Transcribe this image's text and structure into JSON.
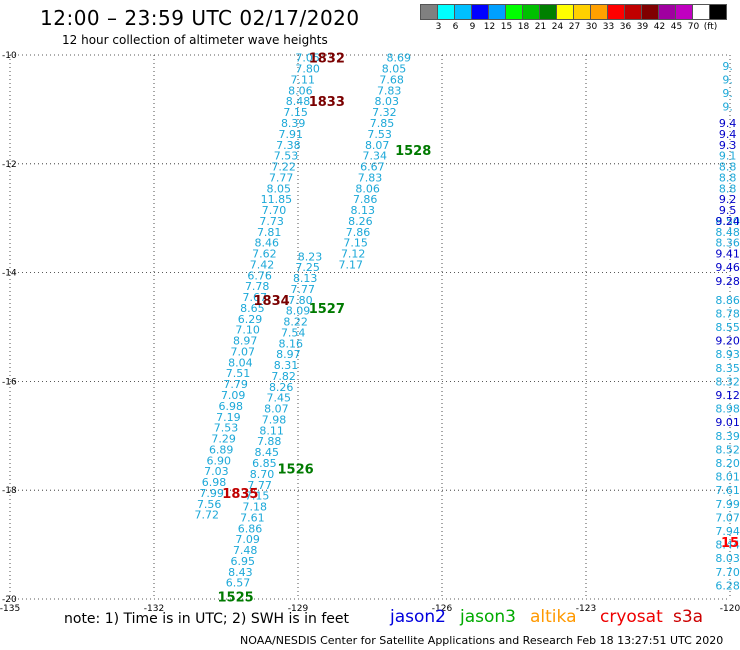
{
  "header": {
    "title": "12:00 – 23:59 UTC 02/17/2020",
    "subtitle": "12 hour collection of altimeter wave heights"
  },
  "scale": {
    "colors": [
      "#808080",
      "#00ffff",
      "#00c0ff",
      "#0000ff",
      "#00a0ff",
      "#00ff00",
      "#00c000",
      "#008000",
      "#ffff00",
      "#ffd000",
      "#ffa000",
      "#ff0000",
      "#c00000",
      "#800000",
      "#a000a0",
      "#c000c0",
      "#ffffff",
      "#000000"
    ],
    "labels": [
      "3",
      "6",
      "9",
      "12",
      "15",
      "18",
      "21",
      "24",
      "27",
      "30",
      "33",
      "36",
      "39",
      "42",
      "45",
      "70",
      "(ft)"
    ]
  },
  "axes": {
    "lat_labels": [
      "-10",
      "-12",
      "-14",
      "-16",
      "-18",
      "-20"
    ],
    "lon_labels": [
      "-135",
      "-132",
      "-129",
      "-126",
      "-123",
      "-120"
    ]
  },
  "chart_data": {
    "type": "scatter",
    "x_axis": "longitude",
    "y_axis": "latitude",
    "xlim": [
      -135,
      -120
    ],
    "ylim": [
      -20,
      -10
    ],
    "tracks": [
      {
        "id": "track1",
        "color": "#1ca8d8",
        "points": [
          [
            -128.8,
            -10.05,
            "7.05"
          ],
          [
            -128.8,
            -10.25,
            "7.80"
          ],
          [
            -128.9,
            -10.45,
            "7.11"
          ],
          [
            -128.95,
            -10.65,
            "8.06"
          ],
          [
            -129.0,
            -10.85,
            "8.48"
          ],
          [
            -129.05,
            -11.05,
            "7.15"
          ],
          [
            -129.1,
            -11.25,
            "8.39"
          ],
          [
            -129.15,
            -11.45,
            "7.91"
          ],
          [
            -129.2,
            -11.65,
            "7.38"
          ],
          [
            -129.25,
            -11.85,
            "7.53"
          ],
          [
            -129.3,
            -12.05,
            "7.22"
          ],
          [
            -129.35,
            -12.25,
            "7.77"
          ],
          [
            -129.4,
            -12.45,
            "8.05"
          ],
          [
            -129.45,
            -12.65,
            "11.85"
          ],
          [
            -129.5,
            -12.85,
            "7.70"
          ],
          [
            -129.55,
            -13.05,
            "7.73"
          ],
          [
            -129.6,
            -13.25,
            "7.81"
          ],
          [
            -129.65,
            -13.45,
            "8.46"
          ],
          [
            -129.7,
            -13.65,
            "7.62"
          ],
          [
            -129.75,
            -13.85,
            "7.42"
          ],
          [
            -129.8,
            -14.05,
            "6.76"
          ],
          [
            -129.85,
            -14.25,
            "7.78"
          ],
          [
            -129.9,
            -14.45,
            "7.67"
          ],
          [
            -129.95,
            -14.65,
            "8.65"
          ],
          [
            -130.0,
            -14.85,
            "6.29"
          ],
          [
            -130.05,
            -15.05,
            "7.10"
          ],
          [
            -130.1,
            -15.25,
            "8.97"
          ],
          [
            -130.15,
            -15.45,
            "7.07"
          ],
          [
            -130.2,
            -15.65,
            "8.04"
          ],
          [
            -130.25,
            -15.85,
            "7.51"
          ],
          [
            -130.3,
            -16.05,
            "7.79"
          ],
          [
            -130.35,
            -16.25,
            "7.09"
          ],
          [
            -130.4,
            -16.45,
            "6.98"
          ],
          [
            -130.45,
            -16.65,
            "7.19"
          ],
          [
            -130.5,
            -16.85,
            "7.53"
          ],
          [
            -130.55,
            -17.05,
            "7.29"
          ],
          [
            -130.6,
            -17.25,
            "6.89"
          ],
          [
            -130.65,
            -17.45,
            "6.90"
          ],
          [
            -130.7,
            -17.65,
            "7.03"
          ],
          [
            -130.75,
            -17.85,
            "6.98"
          ],
          [
            -130.8,
            -18.05,
            "7.99"
          ],
          [
            -130.85,
            -18.25,
            "7.56"
          ],
          [
            -130.9,
            -18.45,
            "7.72"
          ]
        ]
      },
      {
        "id": "track2",
        "color": "#1ca8d8",
        "points": [
          [
            -128.75,
            -13.7,
            "8.23"
          ],
          [
            -128.8,
            -13.9,
            "7.25"
          ],
          [
            -128.85,
            -14.1,
            "8.13"
          ],
          [
            -128.9,
            -14.3,
            "7.77"
          ],
          [
            -128.95,
            -14.5,
            "7.80"
          ],
          [
            -129.0,
            -14.7,
            "8.09"
          ],
          [
            -129.05,
            -14.9,
            "8.22"
          ],
          [
            -129.1,
            -15.1,
            "7.54"
          ],
          [
            -129.15,
            -15.3,
            "8.16"
          ],
          [
            -129.2,
            -15.5,
            "8.97"
          ],
          [
            -129.25,
            -15.7,
            "8.31"
          ],
          [
            -129.3,
            -15.9,
            "7.82"
          ],
          [
            -129.35,
            -16.1,
            "8.26"
          ],
          [
            -129.4,
            -16.3,
            "7.45"
          ],
          [
            -129.45,
            -16.5,
            "8.07"
          ],
          [
            -129.5,
            -16.7,
            "7.98"
          ],
          [
            -129.55,
            -16.9,
            "8.11"
          ],
          [
            -129.6,
            -17.1,
            "7.88"
          ],
          [
            -129.65,
            -17.3,
            "8.45"
          ],
          [
            -129.7,
            -17.5,
            "6.85"
          ],
          [
            -129.75,
            -17.7,
            "8.70"
          ],
          [
            -129.8,
            -17.9,
            "7.77"
          ],
          [
            -129.85,
            -18.1,
            "7.15"
          ],
          [
            -129.9,
            -18.3,
            "7.18"
          ],
          [
            -129.95,
            -18.5,
            "7.61"
          ],
          [
            -130.0,
            -18.7,
            "6.86"
          ],
          [
            -130.05,
            -18.9,
            "7.09"
          ],
          [
            -130.1,
            -19.1,
            "7.48"
          ],
          [
            -130.15,
            -19.3,
            "6.95"
          ],
          [
            -130.2,
            -19.5,
            "8.43"
          ],
          [
            -130.25,
            -19.7,
            "6.57"
          ]
        ]
      },
      {
        "id": "track3",
        "color": "#1ca8d8",
        "points": [
          [
            -126.9,
            -10.05,
            "8.69"
          ],
          [
            -127.0,
            -10.25,
            "8.05"
          ],
          [
            -127.05,
            -10.45,
            "7.68"
          ],
          [
            -127.1,
            -10.65,
            "7.83"
          ],
          [
            -127.15,
            -10.85,
            "8.03"
          ],
          [
            -127.2,
            -11.05,
            "7.32"
          ],
          [
            -127.25,
            -11.25,
            "7.85"
          ],
          [
            -127.3,
            -11.45,
            "7.53"
          ],
          [
            -127.35,
            -11.65,
            "8.07"
          ],
          [
            -127.4,
            -11.85,
            "7.34"
          ],
          [
            -127.45,
            -12.05,
            "6.67"
          ],
          [
            -127.5,
            -12.25,
            "7.83"
          ],
          [
            -127.55,
            -12.45,
            "8.06"
          ],
          [
            -127.6,
            -12.65,
            "7.86"
          ],
          [
            -127.65,
            -12.85,
            "8.13"
          ],
          [
            -127.7,
            -13.05,
            "8.26"
          ],
          [
            -127.75,
            -13.25,
            "7.86"
          ],
          [
            -127.8,
            -13.45,
            "7.15"
          ],
          [
            -127.85,
            -13.65,
            "7.12"
          ],
          [
            -127.9,
            -13.85,
            "7.17"
          ]
        ]
      },
      {
        "id": "track4",
        "color": "#1ca8d8",
        "points": [
          [
            -120.05,
            -11.85,
            "9.1"
          ],
          [
            -120.05,
            -12.05,
            "8.8"
          ],
          [
            -120.05,
            -12.25,
            "8.8"
          ],
          [
            -120.05,
            -12.45,
            "8.8"
          ],
          [
            -120.05,
            -13.05,
            "8.50"
          ],
          [
            -120.05,
            -13.25,
            "8.48"
          ],
          [
            -120.05,
            -13.45,
            "8.36"
          ],
          [
            -120.05,
            -14.5,
            "8.86"
          ],
          [
            -120.05,
            -14.75,
            "8.78"
          ],
          [
            -120.05,
            -15.0,
            "8.55"
          ],
          [
            -120.05,
            -15.5,
            "8.93"
          ],
          [
            -120.05,
            -15.75,
            "8.35"
          ],
          [
            -120.05,
            -16.0,
            "8.32"
          ],
          [
            -120.05,
            -16.5,
            "8.98"
          ],
          [
            -120.05,
            -17.0,
            "8.39"
          ],
          [
            -120.05,
            -17.25,
            "8.52"
          ],
          [
            -120.05,
            -17.5,
            "8.20"
          ],
          [
            -120.05,
            -17.75,
            "8.01"
          ],
          [
            -120.05,
            -18.0,
            "7.61"
          ],
          [
            -120.05,
            -18.25,
            "7.99"
          ],
          [
            -120.05,
            -18.5,
            "7.07"
          ],
          [
            -120.05,
            -18.75,
            "7.94"
          ],
          [
            -120.05,
            -19.0,
            "8.44"
          ],
          [
            -120.05,
            -19.25,
            "8.03"
          ],
          [
            -120.05,
            -19.5,
            "7.70"
          ],
          [
            -120.05,
            -19.75,
            "6.28"
          ]
        ]
      },
      {
        "id": "track4-dark",
        "color": "#0000c8",
        "points": [
          [
            -120.05,
            -11.25,
            "9.4"
          ],
          [
            -120.05,
            -11.45,
            "9.4"
          ],
          [
            -120.05,
            -11.65,
            "9.3"
          ],
          [
            -120.05,
            -12.65,
            "9.2"
          ],
          [
            -120.05,
            -12.85,
            "9.5"
          ],
          [
            -120.05,
            -13.05,
            "9.24"
          ],
          [
            -120.05,
            -13.65,
            "9.41"
          ],
          [
            -120.05,
            -13.9,
            "9.46"
          ],
          [
            -120.05,
            -14.15,
            "9.28"
          ],
          [
            -120.05,
            -15.25,
            "9.20"
          ],
          [
            -120.05,
            -16.25,
            "9.12"
          ],
          [
            -120.05,
            -16.75,
            "9.01"
          ]
        ]
      },
      {
        "id": "edge-top",
        "color": "#1ca8d8",
        "points": [
          [
            -120.05,
            -10.2,
            "9."
          ],
          [
            -120.05,
            -10.45,
            "9."
          ],
          [
            -120.05,
            -10.7,
            "9."
          ],
          [
            -120.05,
            -10.95,
            "9."
          ]
        ]
      }
    ],
    "pass_labels": [
      {
        "text": "1832",
        "lon": -128.4,
        "lat": -10.05,
        "color": "#7a0000"
      },
      {
        "text": "1833",
        "lon": -128.4,
        "lat": -10.85,
        "color": "#7a0000"
      },
      {
        "text": "1528",
        "lon": -126.6,
        "lat": -11.75,
        "color": "#007a00"
      },
      {
        "text": "1834",
        "lon": -129.55,
        "lat": -14.5,
        "color": "#7a0000"
      },
      {
        "text": "1527",
        "lon": -128.4,
        "lat": -14.65,
        "color": "#007a00"
      },
      {
        "text": "1526",
        "lon": -129.05,
        "lat": -17.6,
        "color": "#007a00"
      },
      {
        "text": "1835",
        "lon": -130.2,
        "lat": -18.05,
        "color": "#c00000"
      },
      {
        "text": "1525",
        "lon": -130.3,
        "lat": -19.95,
        "color": "#007a00"
      },
      {
        "text": "15",
        "lon": -120.0,
        "lat": -18.95,
        "color": "#ff0000"
      }
    ]
  },
  "legend": {
    "note": "note: 1) Time is in UTC; 2) SWH is in feet",
    "missions": [
      {
        "name": "jason2",
        "color": "#0000dd",
        "left": 390
      },
      {
        "name": "jason3",
        "color": "#00aa00",
        "left": 460
      },
      {
        "name": "altika",
        "color": "#ff9900",
        "left": 530
      },
      {
        "name": "cryosat",
        "color": "#ee0000",
        "left": 600
      },
      {
        "name": "s3a",
        "color": "#cc0000",
        "left": 673
      }
    ]
  },
  "footer": "NOAA/NESDIS Center for Satellite Applications and Research   Feb 18 13:27:51 UTC 2020"
}
